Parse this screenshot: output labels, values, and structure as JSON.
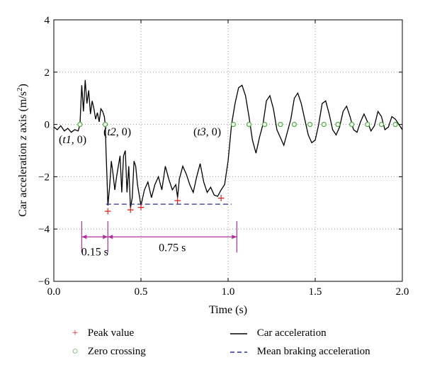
{
  "chart_data": {
    "type": "line",
    "xlabel": "Time (s)",
    "ylabel_parts": [
      "Car acceleration ",
      "z",
      " axis (m/s",
      "2",
      ")"
    ],
    "xlim": [
      0.0,
      2.0
    ],
    "ylim": [
      -6,
      4
    ],
    "xticks": [
      0.0,
      0.5,
      1.0,
      1.5,
      2.0
    ],
    "xtick_labels": [
      "0.0",
      "0.5",
      "1.0",
      "1.5",
      "2.0"
    ],
    "yticks": [
      -6,
      -4,
      -2,
      0,
      2,
      4
    ],
    "ytick_labels": [
      "−6",
      "−4",
      "−2",
      "0",
      "2",
      "4"
    ],
    "grid": "dotted",
    "series": [
      {
        "name": "Car acceleration",
        "style": "solid",
        "color": "#000000",
        "x": [
          0.0,
          0.02,
          0.04,
          0.06,
          0.08,
          0.1,
          0.12,
          0.14,
          0.15,
          0.16,
          0.17,
          0.18,
          0.19,
          0.2,
          0.21,
          0.22,
          0.23,
          0.24,
          0.25,
          0.26,
          0.27,
          0.28,
          0.29,
          0.295,
          0.3,
          0.305,
          0.31,
          0.32,
          0.33,
          0.34,
          0.35,
          0.36,
          0.37,
          0.38,
          0.39,
          0.4,
          0.41,
          0.42,
          0.43,
          0.44,
          0.45,
          0.46,
          0.47,
          0.48,
          0.5,
          0.52,
          0.54,
          0.56,
          0.58,
          0.6,
          0.62,
          0.64,
          0.66,
          0.68,
          0.7,
          0.71,
          0.72,
          0.74,
          0.76,
          0.78,
          0.8,
          0.82,
          0.84,
          0.86,
          0.88,
          0.9,
          0.92,
          0.94,
          0.96,
          0.98,
          1.0,
          1.02,
          1.04,
          1.06,
          1.08,
          1.1,
          1.12,
          1.14,
          1.16,
          1.18,
          1.2,
          1.22,
          1.24,
          1.26,
          1.28,
          1.3,
          1.32,
          1.34,
          1.36,
          1.38,
          1.4,
          1.42,
          1.44,
          1.46,
          1.48,
          1.5,
          1.52,
          1.54,
          1.56,
          1.58,
          1.6,
          1.62,
          1.64,
          1.66,
          1.68,
          1.7,
          1.72,
          1.74,
          1.76,
          1.78,
          1.8,
          1.82,
          1.84,
          1.86,
          1.88,
          1.9,
          1.92,
          1.94,
          1.96,
          1.98,
          2.0
        ],
        "y": [
          -0.1,
          -0.2,
          -0.05,
          -0.25,
          -0.15,
          -0.3,
          -0.2,
          -0.25,
          0.0,
          1.5,
          0.5,
          1.7,
          0.8,
          1.3,
          0.4,
          0.9,
          0.6,
          0.2,
          0.45,
          0.1,
          0.6,
          0.5,
          0.3,
          0.0,
          -1.1,
          -2.0,
          -3.1,
          -2.4,
          -1.4,
          -1.9,
          -2.5,
          -2.0,
          -1.6,
          -1.2,
          -2.6,
          -1.2,
          -1.0,
          -2.6,
          -1.6,
          -3.2,
          -2.8,
          -1.4,
          -1.6,
          -2.3,
          -3.1,
          -2.5,
          -2.2,
          -2.8,
          -2.3,
          -2.0,
          -2.5,
          -1.6,
          -2.1,
          -2.5,
          -2.3,
          -2.8,
          -2.1,
          -1.6,
          -1.9,
          -2.3,
          -2.6,
          -2.0,
          -1.5,
          -2.2,
          -2.6,
          -2.4,
          -2.7,
          -2.75,
          -2.5,
          -2.3,
          -1.4,
          0.0,
          0.8,
          1.4,
          1.5,
          1.1,
          0.3,
          -0.6,
          -1.1,
          -0.5,
          0.0,
          0.9,
          1.1,
          0.6,
          -0.2,
          -0.5,
          -0.8,
          -0.3,
          0.2,
          1.0,
          1.2,
          0.8,
          0.2,
          -0.4,
          -0.7,
          -0.6,
          0.0,
          0.8,
          0.9,
          0.4,
          -0.2,
          -0.4,
          -0.1,
          0.5,
          0.7,
          0.3,
          -0.2,
          -0.3,
          0.1,
          0.4,
          0.1,
          -0.25,
          -0.05,
          0.5,
          0.3,
          -0.2,
          -0.1,
          0.3,
          0.2,
          0.0,
          -0.2
        ]
      },
      {
        "name": "Mean braking acceleration",
        "style": "dashed",
        "color": "#2b2f8f",
        "x": [
          0.3,
          1.02
        ],
        "y": [
          -3.05,
          -3.05
        ]
      }
    ],
    "peak_values": {
      "name": "Peak value",
      "color": "#d82020",
      "x": [
        0.31,
        0.44,
        0.5,
        0.71,
        0.96
      ],
      "y": [
        -3.3,
        -3.25,
        -3.15,
        -2.9,
        -2.8
      ]
    },
    "zero_crossings": {
      "name": "Zero crossing",
      "color": "#4caa40",
      "x": [
        0.15,
        0.295,
        1.03,
        1.12,
        1.21,
        1.3,
        1.38,
        1.47,
        1.55,
        1.63,
        1.71,
        1.8,
        1.88,
        1.96
      ],
      "y": [
        0,
        0,
        0,
        0,
        0,
        0,
        0,
        0,
        0,
        0,
        0,
        0,
        0,
        0
      ]
    },
    "annotations": {
      "t1": "(t1, 0)",
      "t2": "(t2, 0)",
      "t3": "(t3, 0)",
      "d1": "0.15 s",
      "d2": "0.75 s"
    }
  }
}
